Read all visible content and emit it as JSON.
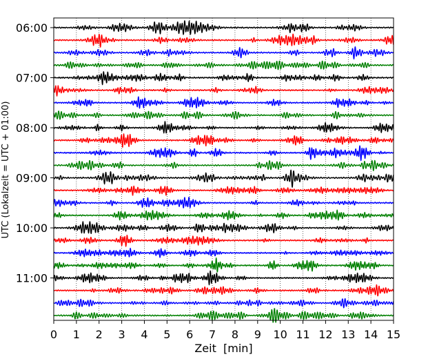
{
  "chart_data": {
    "type": "line",
    "title": "",
    "xlabel": "Zeit  [min]",
    "ylabel": "UTC (Lokalzeit = UTC + 01:00)",
    "xlim": [
      0,
      15
    ],
    "xticks": [
      "0",
      "1",
      "2",
      "3",
      "4",
      "5",
      "6",
      "7",
      "8",
      "9",
      "10",
      "11",
      "12",
      "13",
      "14",
      "15"
    ],
    "ylim": [
      0,
      24
    ],
    "yticks": [
      {
        "row": 0,
        "label": "06:00"
      },
      {
        "row": 4,
        "label": "07:00"
      },
      {
        "row": 8,
        "label": "08:00"
      },
      {
        "row": 12,
        "label": "09:00"
      },
      {
        "row": 16,
        "label": "10:00"
      },
      {
        "row": 20,
        "label": "11:00"
      }
    ],
    "grid": "vertical dotted",
    "trace_minutes": 15,
    "trace_colors": [
      "#000000",
      "#ff0000",
      "#0000ff",
      "#008000"
    ],
    "traces": [
      {
        "start": "06:00",
        "color": "#000000"
      },
      {
        "start": "06:15",
        "color": "#ff0000"
      },
      {
        "start": "06:30",
        "color": "#0000ff"
      },
      {
        "start": "06:45",
        "color": "#008000"
      },
      {
        "start": "07:00",
        "color": "#000000"
      },
      {
        "start": "07:15",
        "color": "#ff0000"
      },
      {
        "start": "07:30",
        "color": "#0000ff"
      },
      {
        "start": "07:45",
        "color": "#008000"
      },
      {
        "start": "08:00",
        "color": "#000000"
      },
      {
        "start": "08:15",
        "color": "#ff0000"
      },
      {
        "start": "08:30",
        "color": "#0000ff"
      },
      {
        "start": "08:45",
        "color": "#008000"
      },
      {
        "start": "09:00",
        "color": "#000000"
      },
      {
        "start": "09:15",
        "color": "#ff0000"
      },
      {
        "start": "09:30",
        "color": "#0000ff"
      },
      {
        "start": "09:45",
        "color": "#008000"
      },
      {
        "start": "10:00",
        "color": "#000000"
      },
      {
        "start": "10:15",
        "color": "#ff0000"
      },
      {
        "start": "10:30",
        "color": "#0000ff"
      },
      {
        "start": "10:45",
        "color": "#008000"
      },
      {
        "start": "11:00",
        "color": "#000000"
      },
      {
        "start": "11:15",
        "color": "#ff0000"
      },
      {
        "start": "11:30",
        "color": "#0000ff"
      },
      {
        "start": "11:45",
        "color": "#008000"
      }
    ]
  }
}
